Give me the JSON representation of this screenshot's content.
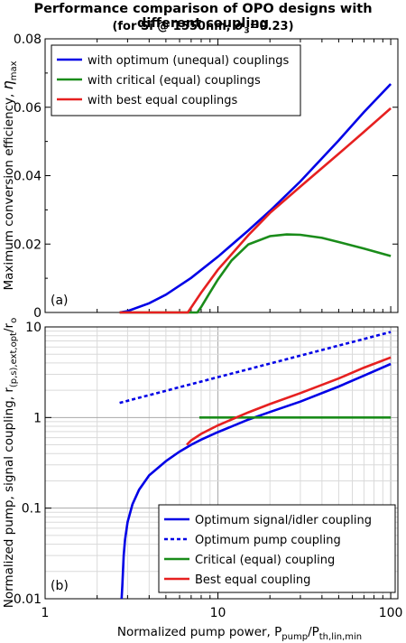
{
  "title": "Performance comparison of OPO designs with different coupling",
  "subtitle_prefix": "(for Si @ 1550nm, ",
  "subtitle_sigma": "σ",
  "subtitle_sub": "3",
  "subtitle_suffix": "=0.23)",
  "xlabel": "Normalized pump power, P",
  "xlabel_sub": "pump",
  "xlabel_mid": "/P",
  "xlabel_sub2": "th,lin,min",
  "xticks": [
    "1",
    "10",
    "100"
  ],
  "chart_data": [
    {
      "type": "line",
      "panel": "(a)",
      "ylabel_text": "Maximum conversion efficiency, ",
      "ylabel_eta": "η",
      "ylabel_sub": "max",
      "xscale": "log",
      "xlim": [
        1,
        110
      ],
      "ylim": [
        0,
        0.08
      ],
      "yticks": [
        "0",
        "0.02",
        "0.04",
        "0.06",
        "0.08"
      ],
      "grid": false,
      "legend_position": "top-left",
      "series": [
        {
          "name": "with optimum (unequal) couplings",
          "color": "#0000e6",
          "x": [
            2.7,
            3.0,
            4.0,
            5.0,
            7.0,
            10.0,
            15.0,
            20.0,
            30.0,
            50.0,
            70.0,
            100.0
          ],
          "y": [
            0.0,
            0.0004,
            0.0027,
            0.0052,
            0.0101,
            0.0163,
            0.024,
            0.0297,
            0.0383,
            0.0503,
            0.0586,
            0.0668
          ]
        },
        {
          "name": "with critical (equal) couplings",
          "color": "#1a8c1a",
          "x": [
            2.7,
            7.6,
            8.0,
            9.0,
            10.0,
            12.0,
            15.0,
            20.0,
            25.0,
            30.0,
            40.0,
            50.0,
            70.0,
            100.0
          ],
          "y": [
            0.0,
            0.0,
            0.0016,
            0.0059,
            0.0096,
            0.0152,
            0.0199,
            0.0223,
            0.0228,
            0.0227,
            0.0218,
            0.0206,
            0.0187,
            0.0165
          ]
        },
        {
          "name": "with best equal couplings",
          "color": "#e62020",
          "x": [
            2.7,
            6.7,
            8.0,
            10.0,
            15.0,
            20.0,
            30.0,
            50.0,
            70.0,
            100.0
          ],
          "y": [
            0.0,
            0.0,
            0.0058,
            0.0125,
            0.0226,
            0.0291,
            0.0368,
            0.0464,
            0.0528,
            0.0597
          ]
        }
      ]
    },
    {
      "type": "line",
      "panel": "(b)",
      "ylabel_text": "Normalized pump, signal coupling, r",
      "ylabel_sub": "(p,s),ext,opt",
      "ylabel_tail": "/r",
      "ylabel_sub2": "o",
      "xscale": "log",
      "yscale": "log",
      "xlim": [
        1,
        110
      ],
      "ylim": [
        0.01,
        10
      ],
      "yticks": [
        "0.01",
        "0.1",
        "1",
        "10"
      ],
      "grid": true,
      "legend_position": "bottom-right",
      "series": [
        {
          "name": "Optimum signal/idler coupling",
          "color": "#0000e6",
          "dash": "solid",
          "x": [
            2.77,
            2.8,
            2.85,
            2.9,
            3.0,
            3.2,
            3.5,
            4.0,
            5.0,
            6.0,
            7.0,
            8.0,
            10.0,
            15.0,
            20.0,
            30.0,
            50.0,
            70.0,
            100.0
          ],
          "y": [
            0.01,
            0.014,
            0.03,
            0.045,
            0.07,
            0.11,
            0.16,
            0.23,
            0.33,
            0.42,
            0.5,
            0.57,
            0.69,
            0.95,
            1.15,
            1.5,
            2.2,
            2.9,
            3.9
          ]
        },
        {
          "name": "Optimum pump coupling",
          "color": "#0000e6",
          "dash": "dotted",
          "x": [
            2.7,
            100.0
          ],
          "y": [
            1.45,
            8.8
          ]
        },
        {
          "name": "Critical (equal) coupling",
          "color": "#1a8c1a",
          "dash": "solid",
          "x": [
            7.8,
            100.0
          ],
          "y": [
            1.0,
            1.0
          ]
        },
        {
          "name": "Best equal coupling",
          "color": "#e62020",
          "dash": "solid",
          "x": [
            6.6,
            7.0,
            8.0,
            10.0,
            15.0,
            20.0,
            30.0,
            50.0,
            70.0,
            100.0
          ],
          "y": [
            0.5,
            0.56,
            0.66,
            0.82,
            1.14,
            1.41,
            1.86,
            2.7,
            3.55,
            4.6
          ]
        }
      ]
    }
  ]
}
